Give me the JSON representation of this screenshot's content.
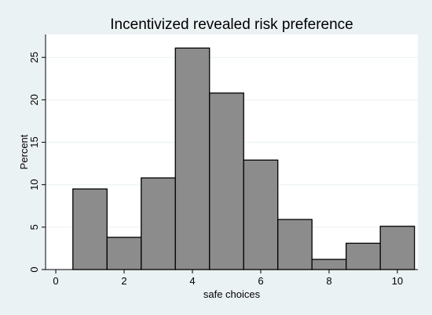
{
  "chart_data": {
    "type": "bar",
    "title": "Incentivized revealed risk preference",
    "xlabel": "safe choices",
    "ylabel": "Percent",
    "x": [
      1,
      2,
      3,
      4,
      5,
      6,
      7,
      8,
      9,
      10
    ],
    "values": [
      9.5,
      3.8,
      10.8,
      26.1,
      20.8,
      12.9,
      5.9,
      1.2,
      3.1,
      5.1
    ],
    "bar_width": 1,
    "xlim": [
      -0.3,
      10.6
    ],
    "ylim": [
      0,
      27.7
    ],
    "xticks": [
      0,
      2,
      4,
      6,
      8,
      10
    ],
    "yticks": [
      0,
      5,
      10,
      15,
      20,
      25
    ],
    "grid": "horizontal",
    "colors": {
      "background": "#eaf2f3",
      "plot_area": "#ffffff",
      "bar_fill": "#8c8c8c",
      "bar_edge": "#000000",
      "grid": "#eaf2f3"
    }
  }
}
